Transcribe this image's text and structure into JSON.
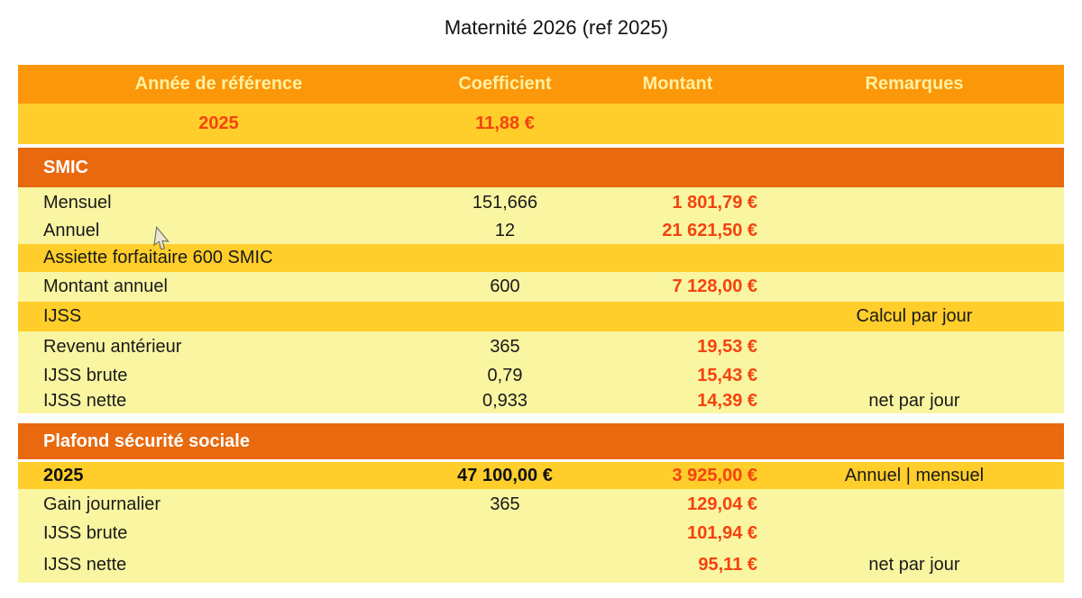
{
  "title": "Maternité 2026 (ref 2025)",
  "table": {
    "columns": [
      "Année de référence",
      "Coefficient",
      "Montant",
      "Remarques"
    ],
    "rows": [
      {
        "kind": "gold",
        "cells": {
          "label": "2025",
          "coefficient": "11,88 €",
          "montant": "",
          "remarques": ""
        }
      },
      {
        "kind": "section",
        "label": "SMIC"
      },
      {
        "kind": "pale",
        "cells": {
          "label": "Mensuel",
          "coefficient": "151,666",
          "montant": "1 801,79 €",
          "remarques": ""
        }
      },
      {
        "kind": "pale",
        "cells": {
          "label": "Annuel",
          "coefficient": "12",
          "montant": "21 621,50 €",
          "remarques": ""
        }
      },
      {
        "kind": "gold",
        "cells": {
          "label": "Assiette forfaitaire 600 SMIC",
          "coefficient": "",
          "montant": "",
          "remarques": ""
        }
      },
      {
        "kind": "pale",
        "cells": {
          "label": "Montant annuel",
          "coefficient": "600",
          "montant": "7 128,00 €",
          "remarques": ""
        }
      },
      {
        "kind": "gold",
        "cells": {
          "label": "IJSS",
          "coefficient": "",
          "montant": "",
          "remarques": "Calcul par jour"
        }
      },
      {
        "kind": "pale",
        "cells": {
          "label": "Revenu antérieur",
          "coefficient": "365",
          "montant": "19,53 €",
          "remarques": ""
        }
      },
      {
        "kind": "pale",
        "cells": {
          "label": "IJSS brute",
          "coefficient": "0,79",
          "montant": "15,43 €",
          "remarques": ""
        }
      },
      {
        "kind": "pale",
        "cells": {
          "label": "IJSS nette",
          "coefficient": "0,933",
          "montant": "14,39 €",
          "remarques": "net par jour"
        }
      },
      {
        "kind": "section",
        "label": "Plafond sécurité sociale"
      },
      {
        "kind": "gold",
        "cells": {
          "label": "2025",
          "coefficient": "47 100,00 €",
          "montant": "3 925,00 €",
          "remarques": "Annuel | mensuel"
        }
      },
      {
        "kind": "pale",
        "cells": {
          "label": "Gain journalier",
          "coefficient": "365",
          "montant": "129,04 €",
          "remarques": ""
        }
      },
      {
        "kind": "pale",
        "cells": {
          "label": "IJSS brute",
          "coefficient": "",
          "montant": "101,94 €",
          "remarques": ""
        }
      },
      {
        "kind": "pale",
        "cells": {
          "label": "IJSS nette",
          "coefficient": "",
          "montant": "95,11 €",
          "remarques": "net par jour"
        }
      }
    ]
  },
  "colors": {
    "header_band": "#FB9709",
    "section_band": "#E8690E",
    "gold_row": "#FFCE2B",
    "pale_row": "#FAF5A1",
    "value_red": "#F4430F",
    "header_text": "#FFF0A0"
  }
}
